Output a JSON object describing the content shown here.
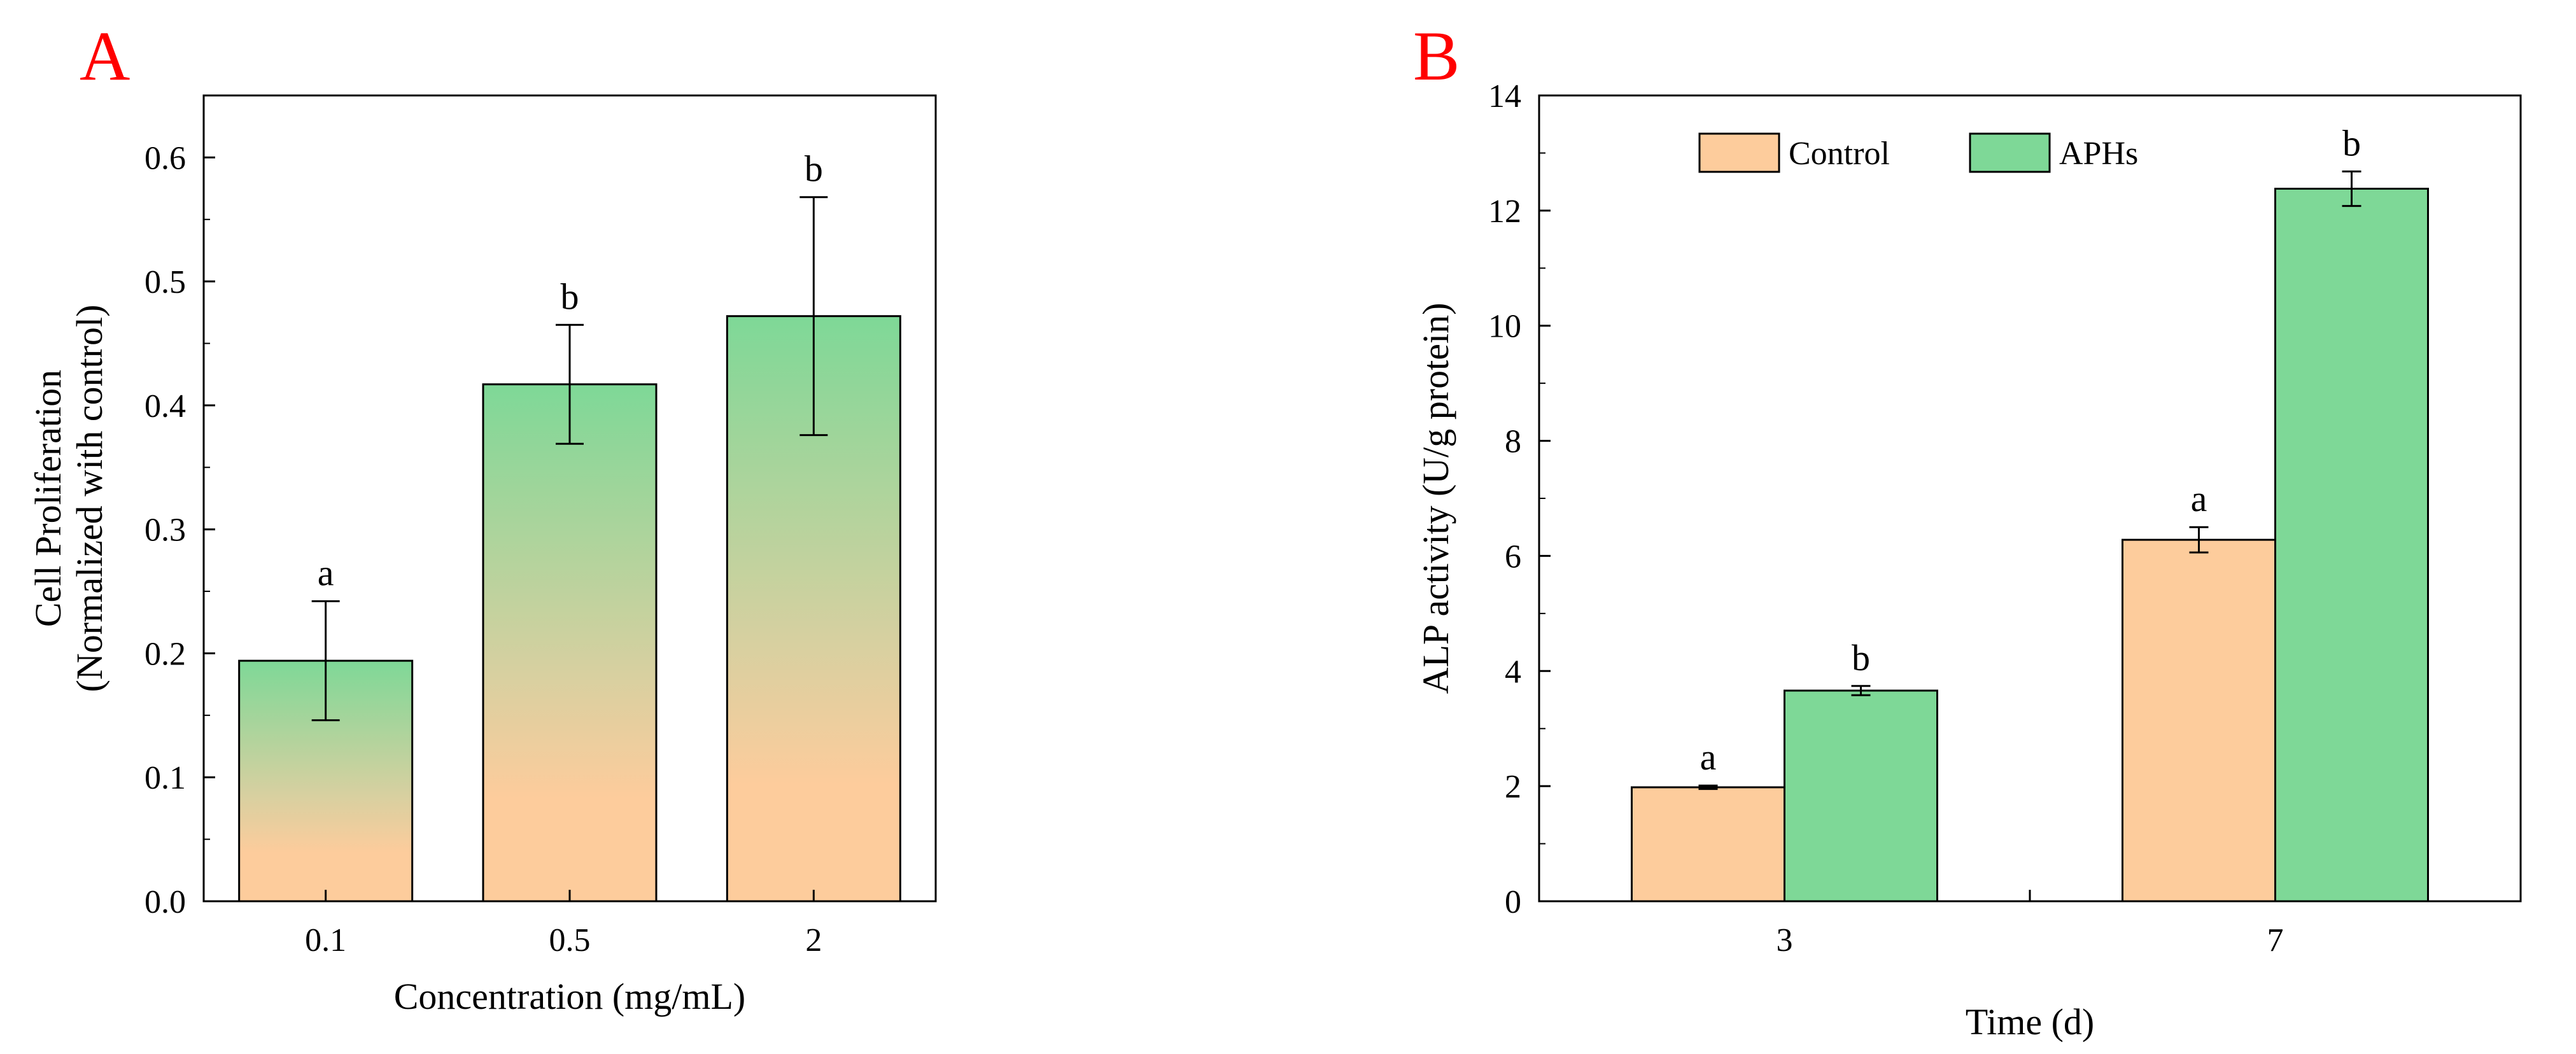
{
  "colors": {
    "control": "#fdcc9c",
    "aphs": "#7ed897",
    "panel_letter": "#ff0000",
    "axis": "#000000"
  },
  "chart_data": [
    {
      "panel": "A",
      "type": "bar",
      "title": "",
      "xlabel": "Concentration (mg/mL)",
      "ylabel_line1": "Cell Proliferation",
      "ylabel_line2": "(Normalized with control)",
      "ylim": [
        0,
        0.65
      ],
      "yticks": [
        0.0,
        0.1,
        0.2,
        0.3,
        0.4,
        0.5,
        0.6
      ],
      "ytick_labels": [
        "0.0",
        "0.1",
        "0.2",
        "0.3",
        "0.4",
        "0.5",
        "0.6"
      ],
      "categories": [
        "0.1",
        "0.5",
        "2"
      ],
      "values": [
        0.194,
        0.417,
        0.472
      ],
      "errors": [
        0.048,
        0.048,
        0.096
      ],
      "significance": [
        "a",
        "b",
        "b"
      ],
      "fill": "gradient (green top to orange bottom)"
    },
    {
      "panel": "B",
      "type": "bar",
      "title": "",
      "xlabel": "Time (d)",
      "ylabel": "ALP activity (U/g protein)",
      "ylim": [
        0,
        14
      ],
      "yticks": [
        0,
        2,
        4,
        6,
        8,
        10,
        12,
        14
      ],
      "ytick_labels": [
        "0",
        "2",
        "4",
        "6",
        "8",
        "10",
        "12",
        "14"
      ],
      "categories": [
        "3",
        "7"
      ],
      "legend_position": "top",
      "series": [
        {
          "name": "Control",
          "color_key": "control",
          "values": [
            1.98,
            6.28
          ],
          "errors": [
            0.03,
            0.22
          ],
          "significance": [
            "a",
            "a"
          ]
        },
        {
          "name": "APHs",
          "color_key": "aphs",
          "values": [
            3.66,
            12.38
          ],
          "errors": [
            0.08,
            0.3
          ],
          "significance": [
            "b",
            "b"
          ]
        }
      ]
    }
  ]
}
